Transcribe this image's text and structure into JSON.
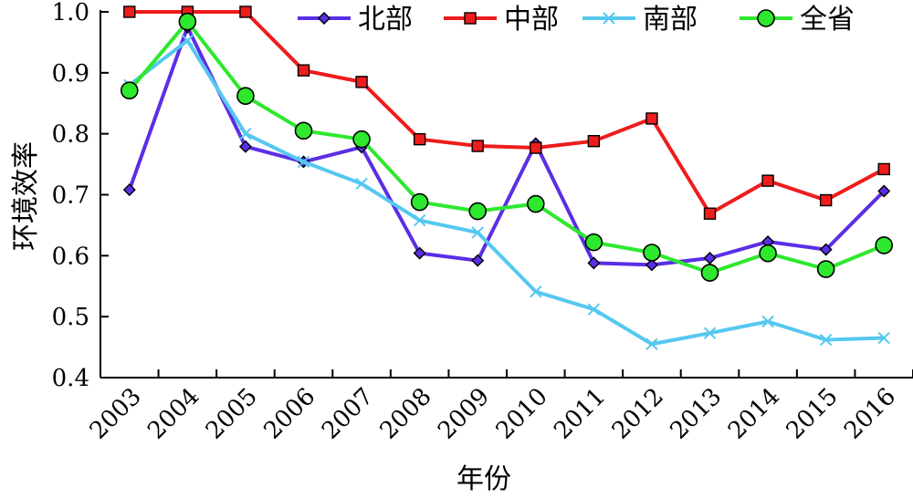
{
  "chart_data": {
    "type": "line",
    "xlabel": "年份",
    "ylabel": "环境效率",
    "categories": [
      "2003",
      "2004",
      "2005",
      "2006",
      "2007",
      "2008",
      "2009",
      "2010",
      "2011",
      "2012",
      "2013",
      "2014",
      "2015",
      "2016"
    ],
    "ylim": [
      0.4,
      1.0
    ],
    "yticks": [
      "0.4",
      "0.5",
      "0.6",
      "0.7",
      "0.8",
      "0.9",
      "1.0"
    ],
    "legend_position": "top",
    "series": [
      {
        "name": "北部",
        "color": "#5b2ee6",
        "marker": "diamond",
        "values": [
          0.708,
          0.975,
          0.779,
          0.754,
          0.778,
          0.604,
          0.592,
          0.784,
          0.588,
          0.585,
          0.596,
          0.623,
          0.61,
          0.706
        ]
      },
      {
        "name": "中部",
        "color": "#ee1c1c",
        "marker": "square",
        "values": [
          1.0,
          1.0,
          1.0,
          0.904,
          0.885,
          0.791,
          0.78,
          0.777,
          0.788,
          0.825,
          0.669,
          0.723,
          0.691,
          0.742
        ]
      },
      {
        "name": "南部",
        "color": "#55c8f0",
        "marker": "x",
        "values": [
          0.88,
          0.953,
          0.8,
          0.754,
          0.718,
          0.658,
          0.638,
          0.541,
          0.512,
          0.455,
          0.473,
          0.492,
          0.462,
          0.465
        ]
      },
      {
        "name": "全省",
        "color": "#2ee82e",
        "marker": "circle",
        "values": [
          0.871,
          0.984,
          0.862,
          0.805,
          0.791,
          0.688,
          0.673,
          0.685,
          0.622,
          0.605,
          0.572,
          0.604,
          0.578,
          0.617
        ]
      }
    ]
  }
}
